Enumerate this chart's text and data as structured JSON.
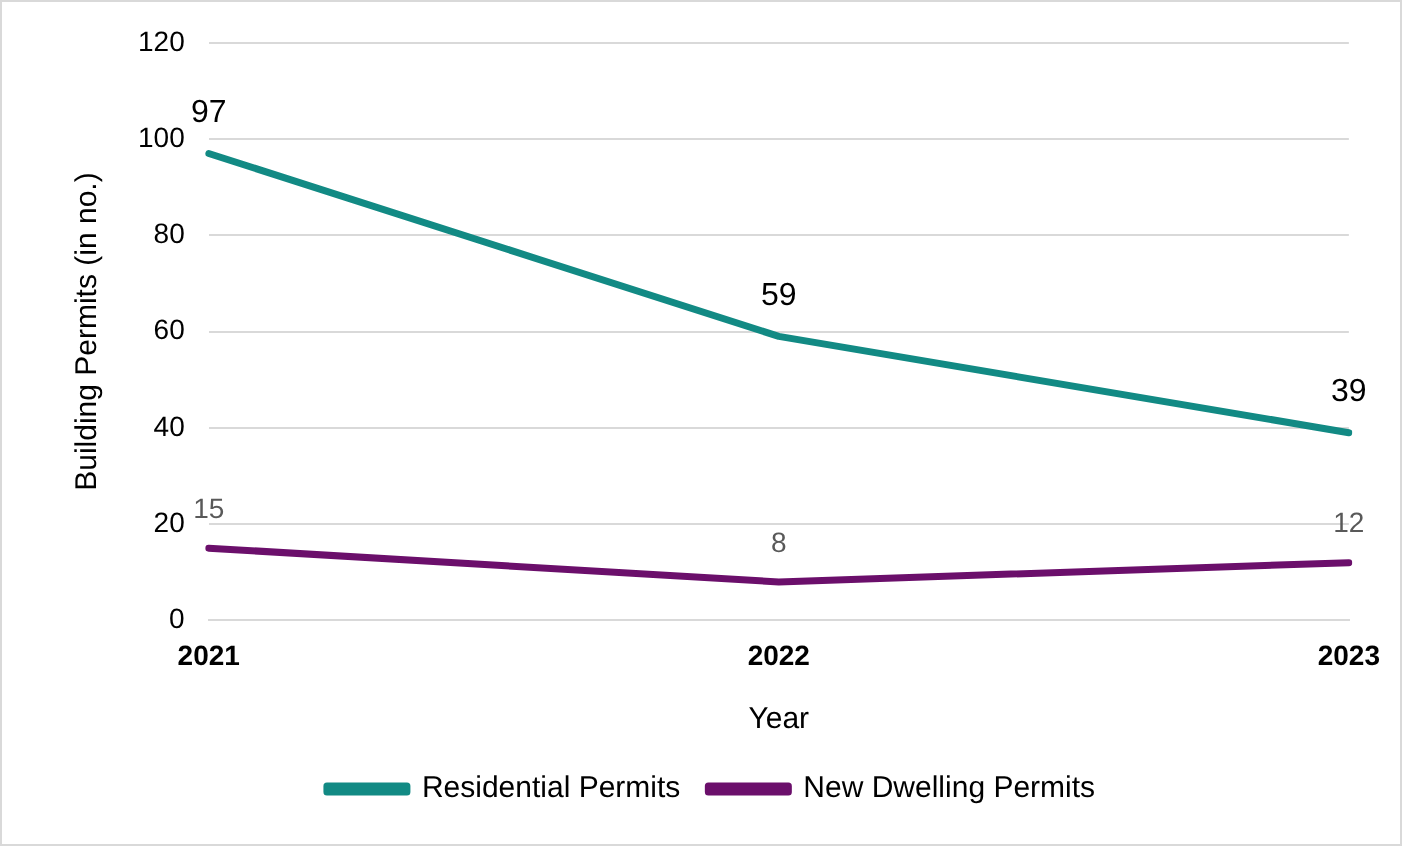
{
  "chart_data": {
    "type": "line",
    "xlabel": "Year",
    "ylabel": "Building Permits (in no.)",
    "categories": [
      "2021",
      "2022",
      "2023"
    ],
    "series": [
      {
        "name": "Residential Permits",
        "color": "#128a84",
        "values": [
          97,
          59,
          39
        ]
      },
      {
        "name": "New Dwelling Permits",
        "color": "#6b0f6b",
        "values": [
          15,
          8,
          12
        ]
      }
    ],
    "ylim": [
      0,
      120
    ],
    "yticks": [
      0,
      20,
      40,
      60,
      80,
      100,
      120
    ],
    "grid": "y",
    "legend": "bottom",
    "data_labels": true,
    "marker": "none",
    "line_style": "solid"
  }
}
